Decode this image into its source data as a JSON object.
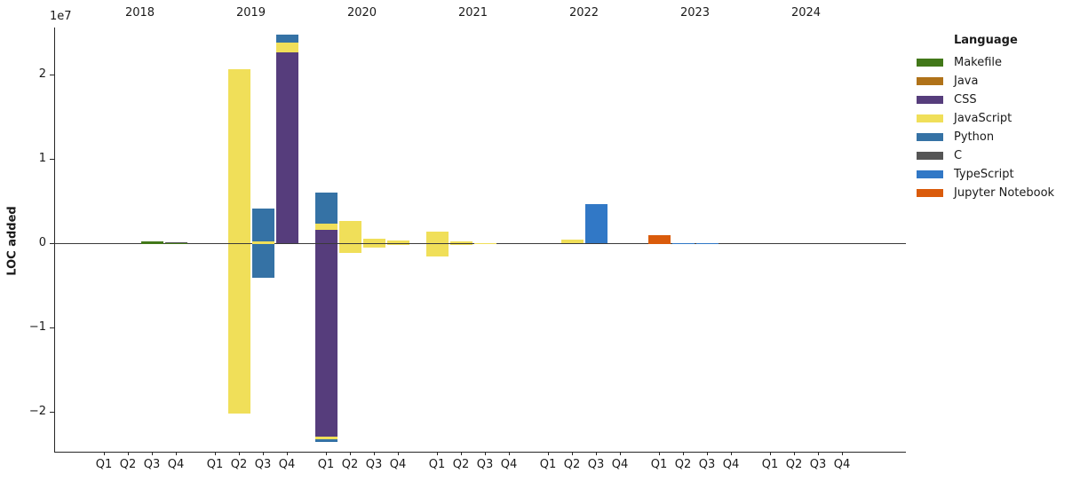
{
  "figure": {
    "ylabel": "LOC added",
    "scale_label": "1e7"
  },
  "legend": {
    "title": "Language",
    "items": [
      {
        "label": "Makefile",
        "color": "#427819"
      },
      {
        "label": "Java",
        "color": "#b07219"
      },
      {
        "label": "CSS",
        "color": "#563d7c"
      },
      {
        "label": "JavaScript",
        "color": "#f0df59"
      },
      {
        "label": "Python",
        "color": "#3572a5"
      },
      {
        "label": "C",
        "color": "#555555"
      },
      {
        "label": "TypeScript",
        "color": "#3178c6"
      },
      {
        "label": "Jupyter Notebook",
        "color": "#da5b0b"
      }
    ]
  },
  "chart_data": {
    "type": "bar",
    "stacked": true,
    "title": "",
    "xlabel": "",
    "ylabel": "LOC added",
    "y_scale_label": "1e7",
    "ylim": [
      -26000000,
      26000000
    ],
    "yticks": [
      -20000000,
      -10000000,
      0,
      10000000,
      20000000
    ],
    "ytick_labels": [
      "−2",
      "−1",
      "0",
      "1",
      "2"
    ],
    "grid": false,
    "zero_line": true,
    "legend_position": "outside upper right",
    "years": [
      "2018",
      "2019",
      "2020",
      "2021",
      "2022",
      "2023",
      "2024"
    ],
    "quarters": [
      "Q1",
      "Q2",
      "Q3",
      "Q4"
    ],
    "series": [
      {
        "name": "Makefile",
        "color": "#427819",
        "positive": {
          "2018-Q3": 250000,
          "2018-Q4": 50000
        },
        "negative": {}
      },
      {
        "name": "Java",
        "color": "#b07219",
        "positive": {
          "2018-Q4": 30000
        },
        "negative": {}
      },
      {
        "name": "CSS",
        "color": "#563d7c",
        "positive": {
          "2019-Q4": 22700000,
          "2020-Q1": 1650000
        },
        "negative": {
          "2020-Q1": -22900000
        }
      },
      {
        "name": "JavaScript",
        "color": "#f0df59",
        "positive": {
          "2019-Q2": 20700000,
          "2019-Q3": 250000,
          "2019-Q4": 1100000,
          "2020-Q1": 750000,
          "2020-Q2": 2650000,
          "2020-Q3": 600000,
          "2020-Q4": 330000,
          "2021-Q1": 1400000,
          "2021-Q2": 300000,
          "2021-Q3": 60000,
          "2022-Q2": 450000
        },
        "negative": {
          "2019-Q2": -20200000,
          "2020-Q1": -320000,
          "2020-Q2": -1100000,
          "2020-Q3": -500000,
          "2020-Q4": -50000,
          "2021-Q1": -1500000,
          "2021-Q2": -150000
        }
      },
      {
        "name": "Python",
        "color": "#3572a5",
        "positive": {
          "2019-Q3": 3950000,
          "2019-Q4": 950000,
          "2020-Q1": 3700000
        },
        "negative": {
          "2019-Q3": -4000000,
          "2020-Q1": -310000
        }
      },
      {
        "name": "C",
        "color": "#555555",
        "positive": {
          "2018-Q4": 20000
        },
        "negative": {}
      },
      {
        "name": "TypeScript",
        "color": "#3178c6",
        "positive": {
          "2022-Q3": 4700000,
          "2023-Q2": 100000,
          "2023-Q3": 100000
        },
        "negative": {}
      },
      {
        "name": "Jupyter Notebook",
        "color": "#da5b0b",
        "positive": {
          "2023-Q1": 1000000
        },
        "negative": {}
      }
    ]
  }
}
